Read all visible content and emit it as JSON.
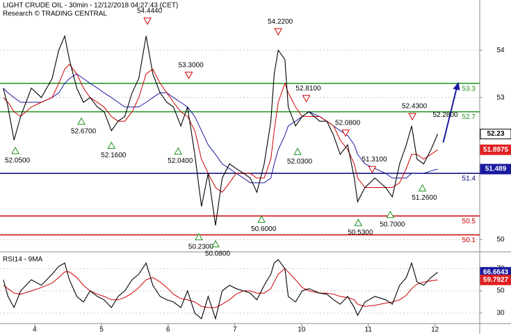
{
  "chart_data": [
    {
      "type": "line",
      "title": "LIGHT CRUDE OIL - 30min - 12/12/2018 04:27:43 (CET)",
      "subtitle": "Research © TRADING CENTRAL",
      "x": [
        -0.47,
        -0.4,
        -0.31,
        -0.21,
        -0.05,
        0.1,
        0.26,
        0.36,
        0.45,
        0.52,
        0.63,
        0.73,
        0.83,
        0.94,
        1.04,
        1.15,
        1.25,
        1.35,
        1.46,
        1.56,
        1.67,
        1.77,
        1.88,
        1.98,
        2.08,
        2.19,
        2.29,
        2.4,
        2.5,
        2.6,
        2.71,
        2.81,
        2.92,
        3.02,
        3.13,
        3.23,
        3.33,
        3.44,
        3.54,
        3.59,
        3.65,
        3.75,
        3.8,
        3.91,
        4.01,
        4.11,
        4.27,
        4.38,
        4.48,
        4.58,
        4.69,
        4.79,
        4.84,
        4.95,
        5.1,
        5.26,
        5.36,
        5.47,
        5.57,
        5.65,
        5.73,
        5.83,
        5.94,
        6.04
      ],
      "xlim": [
        -0.52,
        6.67
      ],
      "ylim": [
        49.77,
        55.06
      ],
      "yticks": [
        50,
        53,
        54
      ],
      "grid": true,
      "series": [
        {
          "color": "#000000",
          "box_fill": "#ffffff",
          "values": [
            53.2,
            52.8,
            52.1,
            52.6,
            53.2,
            53.0,
            53.4,
            54.0,
            54.3,
            53.8,
            53.2,
            52.9,
            53.0,
            52.8,
            52.7,
            52.3,
            52.5,
            52.6,
            53.1,
            53.4,
            54.3,
            53.5,
            53.1,
            52.9,
            52.8,
            52.4,
            52.8,
            51.8,
            50.7,
            51.4,
            50.3,
            51.3,
            51.6,
            51.5,
            51.4,
            51.3,
            51.0,
            51.6,
            52.5,
            53.5,
            54.0,
            53.8,
            52.8,
            52.4,
            52.6,
            52.7,
            52.5,
            52.5,
            52.2,
            51.8,
            52.0,
            51.3,
            50.8,
            51.1,
            51.3,
            51.1,
            50.9,
            51.6,
            52.0,
            52.4,
            51.7,
            51.6,
            51.9,
            52.23
          ]
        },
        {
          "color": "#cc0000",
          "box_fill": "#e02020",
          "values": [
            53.0,
            52.9,
            52.7,
            52.6,
            52.8,
            52.9,
            53.0,
            53.3,
            53.6,
            53.7,
            53.5,
            53.2,
            53.0,
            52.9,
            52.8,
            52.6,
            52.5,
            52.5,
            52.7,
            53.0,
            53.5,
            53.6,
            53.3,
            53.1,
            52.9,
            52.7,
            52.6,
            52.3,
            51.7,
            51.4,
            51.1,
            51.0,
            51.2,
            51.4,
            51.4,
            51.4,
            51.3,
            51.3,
            51.7,
            52.3,
            52.9,
            53.3,
            53.1,
            52.8,
            52.6,
            52.6,
            52.6,
            52.5,
            52.4,
            52.1,
            51.9,
            51.6,
            51.3,
            51.1,
            51.1,
            51.1,
            51.1,
            51.2,
            51.5,
            51.8,
            51.8,
            51.7,
            51.8,
            51.8975
          ]
        },
        {
          "color": "#1a1aa0",
          "box_fill": "#1a1aa0",
          "values": [
            53.2,
            53.1,
            53.0,
            52.9,
            52.9,
            52.9,
            53.0,
            53.1,
            53.3,
            53.4,
            53.5,
            53.4,
            53.3,
            53.2,
            53.1,
            53.0,
            52.9,
            52.8,
            52.8,
            52.8,
            52.9,
            53.0,
            53.1,
            53.1,
            53.0,
            52.9,
            52.8,
            52.6,
            52.3,
            52.0,
            51.8,
            51.6,
            51.5,
            51.4,
            51.3,
            51.2,
            51.2,
            51.2,
            51.3,
            51.6,
            51.9,
            52.2,
            52.4,
            52.5,
            52.6,
            52.7,
            52.6,
            52.5,
            52.4,
            52.3,
            52.2,
            52.0,
            51.8,
            51.6,
            51.5,
            51.4,
            51.3,
            51.3,
            51.3,
            51.4,
            51.4,
            51.4,
            51.45,
            51.489
          ]
        }
      ],
      "levels": [
        {
          "value": 53.3,
          "color": "#1f8f1f"
        },
        {
          "value": 52.7,
          "color": "#1f8f1f"
        },
        {
          "value": 51.4,
          "color": "#00007a"
        },
        {
          "value": 50.5,
          "color": "#cc0000"
        },
        {
          "value": 50.1,
          "color": "#cc0000"
        }
      ],
      "pivot_highs": {
        "color": "#cc0000",
        "x": [
          1.69,
          2.31,
          3.65,
          4.07,
          4.66,
          5.06,
          5.66
        ],
        "values": [
          54.444,
          53.3,
          54.22,
          52.81,
          52.08,
          51.31,
          52.43
        ],
        "value_labels": [
          "54.4440",
          "53.3000",
          "54.2200",
          "52.8100",
          "52.0800",
          "51.3100",
          "52.4300"
        ]
      },
      "pivot_lows": {
        "color": "#1f8f1f",
        "x": [
          -0.29,
          0.7,
          1.15,
          2.15,
          2.46,
          2.71,
          3.4,
          3.94,
          4.85,
          5.33,
          5.81
        ],
        "values": [
          52.05,
          52.67,
          52.16,
          52.04,
          50.23,
          50.08,
          50.6,
          52.03,
          50.53,
          50.7,
          51.26
        ],
        "value_labels": [
          "52.0500",
          "52.6700",
          "52.1600",
          "52.0400",
          "50.2300",
          "50.0800",
          "50.6000",
          "52.0300",
          "50.5300",
          "50.7000",
          "51.2600"
        ]
      },
      "forecast": {
        "value": 52.28,
        "label": "52.2800",
        "color": "#1a1aa0"
      }
    },
    {
      "type": "line",
      "title": "RSI14 - 9MA",
      "x": [
        -0.47,
        -0.4,
        -0.31,
        -0.21,
        -0.05,
        0.1,
        0.26,
        0.36,
        0.45,
        0.52,
        0.63,
        0.73,
        0.83,
        0.94,
        1.04,
        1.15,
        1.25,
        1.35,
        1.46,
        1.56,
        1.67,
        1.77,
        1.88,
        1.98,
        2.08,
        2.19,
        2.29,
        2.4,
        2.5,
        2.6,
        2.71,
        2.81,
        2.92,
        3.02,
        3.13,
        3.23,
        3.33,
        3.44,
        3.54,
        3.59,
        3.65,
        3.75,
        3.8,
        3.91,
        4.01,
        4.11,
        4.27,
        4.38,
        4.48,
        4.58,
        4.69,
        4.79,
        4.84,
        4.95,
        5.1,
        5.26,
        5.36,
        5.47,
        5.57,
        5.65,
        5.73,
        5.83,
        5.94,
        6.04
      ],
      "xlim": [
        -0.52,
        6.67
      ],
      "xticks": [
        {
          "value": 0,
          "label": "4"
        },
        {
          "value": 1,
          "label": "5"
        },
        {
          "value": 2,
          "label": "6"
        },
        {
          "value": 3,
          "label": "7"
        },
        {
          "value": 4,
          "label": "10"
        },
        {
          "value": 5,
          "label": "11"
        },
        {
          "value": 6,
          "label": "12"
        }
      ],
      "ylim": [
        20.6,
        83.1
      ],
      "yticks": [
        30,
        50,
        70
      ],
      "grid": true,
      "series": [
        {
          "color": "#000000",
          "box_fill": "#1a1aa0",
          "values": [
            60,
            45,
            35,
            50,
            60,
            55,
            65,
            72,
            75,
            60,
            45,
            40,
            50,
            45,
            42,
            35,
            45,
            50,
            60,
            65,
            75,
            55,
            45,
            42,
            40,
            35,
            50,
            30,
            25,
            45,
            25,
            50,
            55,
            52,
            50,
            48,
            42,
            55,
            65,
            75,
            78,
            70,
            45,
            40,
            50,
            52,
            48,
            47,
            42,
            38,
            45,
            35,
            28,
            40,
            45,
            42,
            38,
            55,
            62,
            75,
            58,
            55,
            62,
            66.6643
          ]
        },
        {
          "color": "#cc0000",
          "box_fill": "#e02020",
          "values": [
            55,
            52,
            48,
            47,
            50,
            53,
            57,
            62,
            67,
            67,
            62,
            55,
            50,
            47,
            45,
            42,
            42,
            44,
            48,
            53,
            60,
            62,
            58,
            53,
            47,
            43,
            42,
            40,
            36,
            35,
            35,
            38,
            42,
            47,
            50,
            50,
            48,
            48,
            52,
            58,
            65,
            70,
            67,
            60,
            53,
            50,
            48,
            48,
            47,
            45,
            44,
            42,
            38,
            36,
            37,
            39,
            40,
            42,
            46,
            52,
            56,
            58,
            59,
            59.7927
          ]
        }
      ]
    }
  ]
}
